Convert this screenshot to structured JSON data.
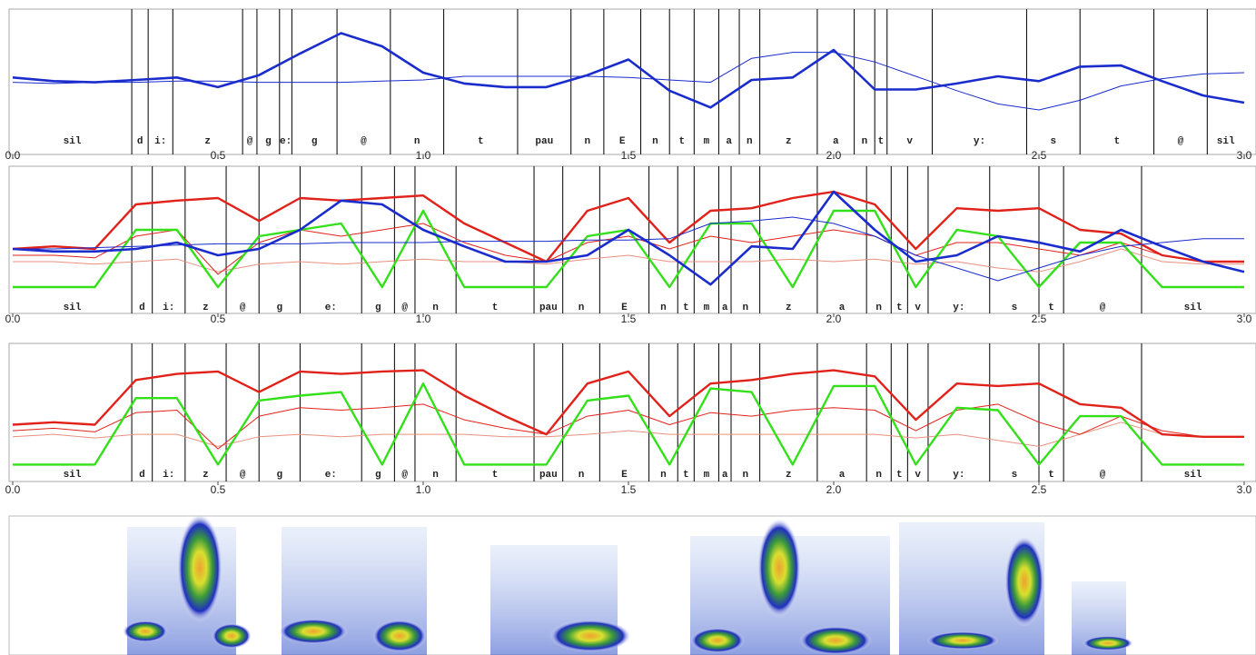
{
  "chart_data": [
    {
      "type": "line",
      "xlim": [
        0,
        3
      ],
      "ylim": [
        0,
        1
      ],
      "xticks": [
        {
          "value": 0,
          "label": "0.0"
        },
        0.5,
        {
          "value": 1,
          "label": "1.0"
        },
        1.5,
        {
          "value": 2,
          "label": "2.0"
        },
        2.5,
        {
          "value": 3,
          "label": "3.0"
        }
      ],
      "phonemes": [
        "sil",
        "d",
        "i:",
        "z",
        "@",
        "g",
        "e:",
        "g",
        "@",
        "n",
        "t",
        "pau",
        "n",
        "E",
        "n",
        "t",
        "m",
        "a",
        "n",
        "z",
        "a",
        "n",
        "t",
        "v",
        "y:",
        "s",
        "t",
        "@",
        "sil"
      ],
      "boundaries": [
        0.29,
        0.33,
        0.39,
        0.56,
        0.595,
        0.65,
        0.68,
        0.79,
        0.92,
        1.05,
        1.23,
        1.36,
        1.44,
        1.53,
        1.6,
        1.66,
        1.72,
        1.77,
        1.82,
        1.96,
        2.05,
        2.1,
        2.13,
        2.24,
        2.47,
        2.6,
        2.78,
        2.91
      ],
      "x": [
        0,
        0.1,
        0.2,
        0.3,
        0.4,
        0.5,
        0.6,
        0.7,
        0.8,
        0.9,
        1,
        1.1,
        1.2,
        1.3,
        1.4,
        1.5,
        1.6,
        1.7,
        1.8,
        1.9,
        2,
        2.1,
        2.2,
        2.3,
        2.4,
        2.5,
        2.6,
        2.7,
        2.8,
        2.9,
        3
      ],
      "series": [
        {
          "color": "#1a2ccc",
          "line_width": 1,
          "values": [
            0.45,
            0.44,
            0.45,
            0.45,
            0.46,
            0.46,
            0.45,
            0.45,
            0.45,
            0.46,
            0.47,
            0.5,
            0.5,
            0.5,
            0.5,
            0.49,
            0.47,
            0.45,
            0.65,
            0.7,
            0.7,
            0.62,
            0.5,
            0.38,
            0.27,
            0.22,
            0.3,
            0.42,
            0.48,
            0.52,
            0.53
          ]
        },
        {
          "color": "#1a2ccc",
          "line_width": 2.6,
          "values": [
            0.49,
            0.46,
            0.45,
            0.47,
            0.49,
            0.41,
            0.51,
            0.69,
            0.86,
            0.75,
            0.53,
            0.44,
            0.41,
            0.41,
            0.51,
            0.64,
            0.38,
            0.24,
            0.47,
            0.49,
            0.72,
            0.39,
            0.39,
            0.44,
            0.5,
            0.46,
            0.58,
            0.59,
            0.46,
            0.34,
            0.28
          ]
        }
      ]
    },
    {
      "type": "line",
      "xlim": [
        0,
        3
      ],
      "ylim": [
        0,
        1
      ],
      "xticks": [
        {
          "value": 0,
          "label": "0.0"
        },
        0.5,
        {
          "value": 1,
          "label": "1.0"
        },
        1.5,
        {
          "value": 2,
          "label": "2.0"
        },
        2.5,
        {
          "value": 3,
          "label": "3.0"
        }
      ],
      "phonemes": [
        "sil",
        "d",
        "i:",
        "z",
        "@",
        "g",
        "e:",
        "g",
        "@",
        "n",
        "t",
        "pau",
        "n",
        "E",
        "n",
        "t",
        "m",
        "a",
        "n",
        "z",
        "a",
        "n",
        "t",
        "v",
        "y:",
        "s",
        "t",
        "@",
        "sil"
      ],
      "boundaries": [
        0.29,
        0.34,
        0.42,
        0.52,
        0.6,
        0.7,
        0.85,
        0.93,
        0.98,
        1.08,
        1.27,
        1.34,
        1.43,
        1.55,
        1.62,
        1.66,
        1.72,
        1.75,
        1.82,
        1.96,
        2.08,
        2.14,
        2.18,
        2.23,
        2.38,
        2.5,
        2.56,
        2.75
      ],
      "x": [
        0,
        0.1,
        0.2,
        0.3,
        0.4,
        0.5,
        0.6,
        0.7,
        0.8,
        0.9,
        1,
        1.1,
        1.2,
        1.3,
        1.4,
        1.5,
        1.6,
        1.7,
        1.8,
        1.9,
        2,
        2.1,
        2.2,
        2.3,
        2.4,
        2.5,
        2.6,
        2.7,
        2.8,
        2.9,
        3
      ],
      "series": [
        {
          "color": "#e89080",
          "line_width": 1,
          "values": [
            0.3,
            0.3,
            0.28,
            0.3,
            0.32,
            0.22,
            0.28,
            0.3,
            0.28,
            0.3,
            0.32,
            0.3,
            0.3,
            0.28,
            0.32,
            0.35,
            0.3,
            0.3,
            0.3,
            0.32,
            0.3,
            0.32,
            0.28,
            0.3,
            0.25,
            0.22,
            0.3,
            0.4,
            0.3,
            0.28,
            0.28
          ]
        },
        {
          "color": "#e0221a",
          "line_width": 1,
          "values": [
            0.35,
            0.35,
            0.33,
            0.5,
            0.55,
            0.2,
            0.45,
            0.55,
            0.5,
            0.55,
            0.6,
            0.45,
            0.35,
            0.3,
            0.45,
            0.5,
            0.4,
            0.5,
            0.45,
            0.5,
            0.55,
            0.5,
            0.35,
            0.45,
            0.45,
            0.4,
            0.35,
            0.45,
            0.35,
            0.3,
            0.3
          ]
        },
        {
          "color": "#33e01a",
          "line_width": 2.4,
          "values": [
            0.1,
            0.1,
            0.1,
            0.55,
            0.55,
            0.1,
            0.5,
            0.55,
            0.6,
            0.1,
            0.7,
            0.1,
            0.1,
            0.1,
            0.5,
            0.55,
            0.1,
            0.6,
            0.6,
            0.1,
            0.7,
            0.7,
            0.1,
            0.55,
            0.5,
            0.1,
            0.45,
            0.45,
            0.1,
            0.1,
            0.1
          ]
        },
        {
          "color": "#e0221a",
          "line_width": 2.4,
          "values": [
            0.4,
            0.42,
            0.4,
            0.75,
            0.78,
            0.8,
            0.62,
            0.8,
            0.78,
            0.8,
            0.82,
            0.6,
            0.45,
            0.3,
            0.7,
            0.8,
            0.45,
            0.7,
            0.72,
            0.8,
            0.85,
            0.75,
            0.4,
            0.72,
            0.7,
            0.72,
            0.55,
            0.52,
            0.35,
            0.3,
            0.3
          ]
        },
        {
          "color": "#1a2ccc",
          "line_width": 1,
          "values": [
            0.4,
            0.4,
            0.41,
            0.42,
            0.43,
            0.44,
            0.44,
            0.44,
            0.45,
            0.45,
            0.45,
            0.46,
            0.46,
            0.46,
            0.47,
            0.47,
            0.48,
            0.6,
            0.62,
            0.65,
            0.6,
            0.5,
            0.35,
            0.25,
            0.15,
            0.25,
            0.35,
            0.42,
            0.45,
            0.48,
            0.48
          ]
        },
        {
          "color": "#1a2ccc",
          "line_width": 2.6,
          "values": [
            0.4,
            0.38,
            0.38,
            0.4,
            0.45,
            0.35,
            0.4,
            0.55,
            0.78,
            0.75,
            0.55,
            0.42,
            0.3,
            0.3,
            0.35,
            0.55,
            0.35,
            0.12,
            0.42,
            0.4,
            0.85,
            0.55,
            0.3,
            0.35,
            0.5,
            0.45,
            0.38,
            0.55,
            0.42,
            0.3,
            0.22
          ]
        }
      ]
    },
    {
      "type": "line",
      "xlim": [
        0,
        3
      ],
      "ylim": [
        0,
        1
      ],
      "xticks": [
        {
          "value": 0,
          "label": "0.0"
        },
        0.5,
        {
          "value": 1,
          "label": "1.0"
        },
        1.5,
        {
          "value": 2,
          "label": "2.0"
        },
        2.5,
        {
          "value": 3,
          "label": "3.0"
        }
      ],
      "phonemes": [
        "sil",
        "d",
        "i:",
        "z",
        "@",
        "g",
        "e:",
        "g",
        "@",
        "n",
        "t",
        "pau",
        "n",
        "E",
        "n",
        "t",
        "m",
        "a",
        "n",
        "z",
        "a",
        "n",
        "t",
        "v",
        "y:",
        "s",
        "t",
        "@",
        "sil"
      ],
      "boundaries": [
        0.29,
        0.34,
        0.42,
        0.52,
        0.6,
        0.7,
        0.85,
        0.93,
        0.98,
        1.08,
        1.27,
        1.34,
        1.43,
        1.55,
        1.62,
        1.66,
        1.72,
        1.75,
        1.82,
        1.96,
        2.08,
        2.14,
        2.18,
        2.23,
        2.38,
        2.5,
        2.56,
        2.75
      ],
      "x": [
        0,
        0.1,
        0.2,
        0.3,
        0.4,
        0.5,
        0.6,
        0.7,
        0.8,
        0.9,
        1,
        1.1,
        1.2,
        1.3,
        1.4,
        1.5,
        1.6,
        1.7,
        1.8,
        1.9,
        2,
        2.1,
        2.2,
        2.3,
        2.4,
        2.5,
        2.6,
        2.7,
        2.8,
        2.9,
        3
      ],
      "series": [
        {
          "color": "#e89080",
          "line_width": 1,
          "values": [
            0.28,
            0.3,
            0.27,
            0.3,
            0.3,
            0.2,
            0.28,
            0.3,
            0.28,
            0.3,
            0.3,
            0.3,
            0.28,
            0.28,
            0.3,
            0.33,
            0.3,
            0.3,
            0.3,
            0.3,
            0.3,
            0.3,
            0.27,
            0.3,
            0.25,
            0.2,
            0.3,
            0.4,
            0.3,
            0.28,
            0.28
          ]
        },
        {
          "color": "#e0221a",
          "line_width": 1,
          "values": [
            0.33,
            0.35,
            0.32,
            0.48,
            0.5,
            0.18,
            0.45,
            0.52,
            0.5,
            0.52,
            0.55,
            0.42,
            0.35,
            0.3,
            0.45,
            0.5,
            0.38,
            0.48,
            0.45,
            0.5,
            0.52,
            0.5,
            0.33,
            0.5,
            0.55,
            0.4,
            0.3,
            0.45,
            0.33,
            0.28,
            0.28
          ]
        },
        {
          "color": "#33e01a",
          "line_width": 2.4,
          "values": [
            0.05,
            0.05,
            0.05,
            0.6,
            0.6,
            0.05,
            0.58,
            0.62,
            0.65,
            0.05,
            0.72,
            0.05,
            0.05,
            0.05,
            0.58,
            0.62,
            0.05,
            0.68,
            0.65,
            0.05,
            0.7,
            0.7,
            0.05,
            0.52,
            0.5,
            0.05,
            0.45,
            0.45,
            0.05,
            0.05,
            0.05
          ]
        },
        {
          "color": "#e0221a",
          "line_width": 2.4,
          "values": [
            0.38,
            0.4,
            0.38,
            0.75,
            0.8,
            0.82,
            0.65,
            0.82,
            0.8,
            0.82,
            0.83,
            0.62,
            0.45,
            0.3,
            0.72,
            0.82,
            0.45,
            0.72,
            0.75,
            0.8,
            0.83,
            0.78,
            0.42,
            0.72,
            0.7,
            0.72,
            0.55,
            0.52,
            0.3,
            0.28,
            0.28
          ]
        }
      ]
    }
  ]
}
